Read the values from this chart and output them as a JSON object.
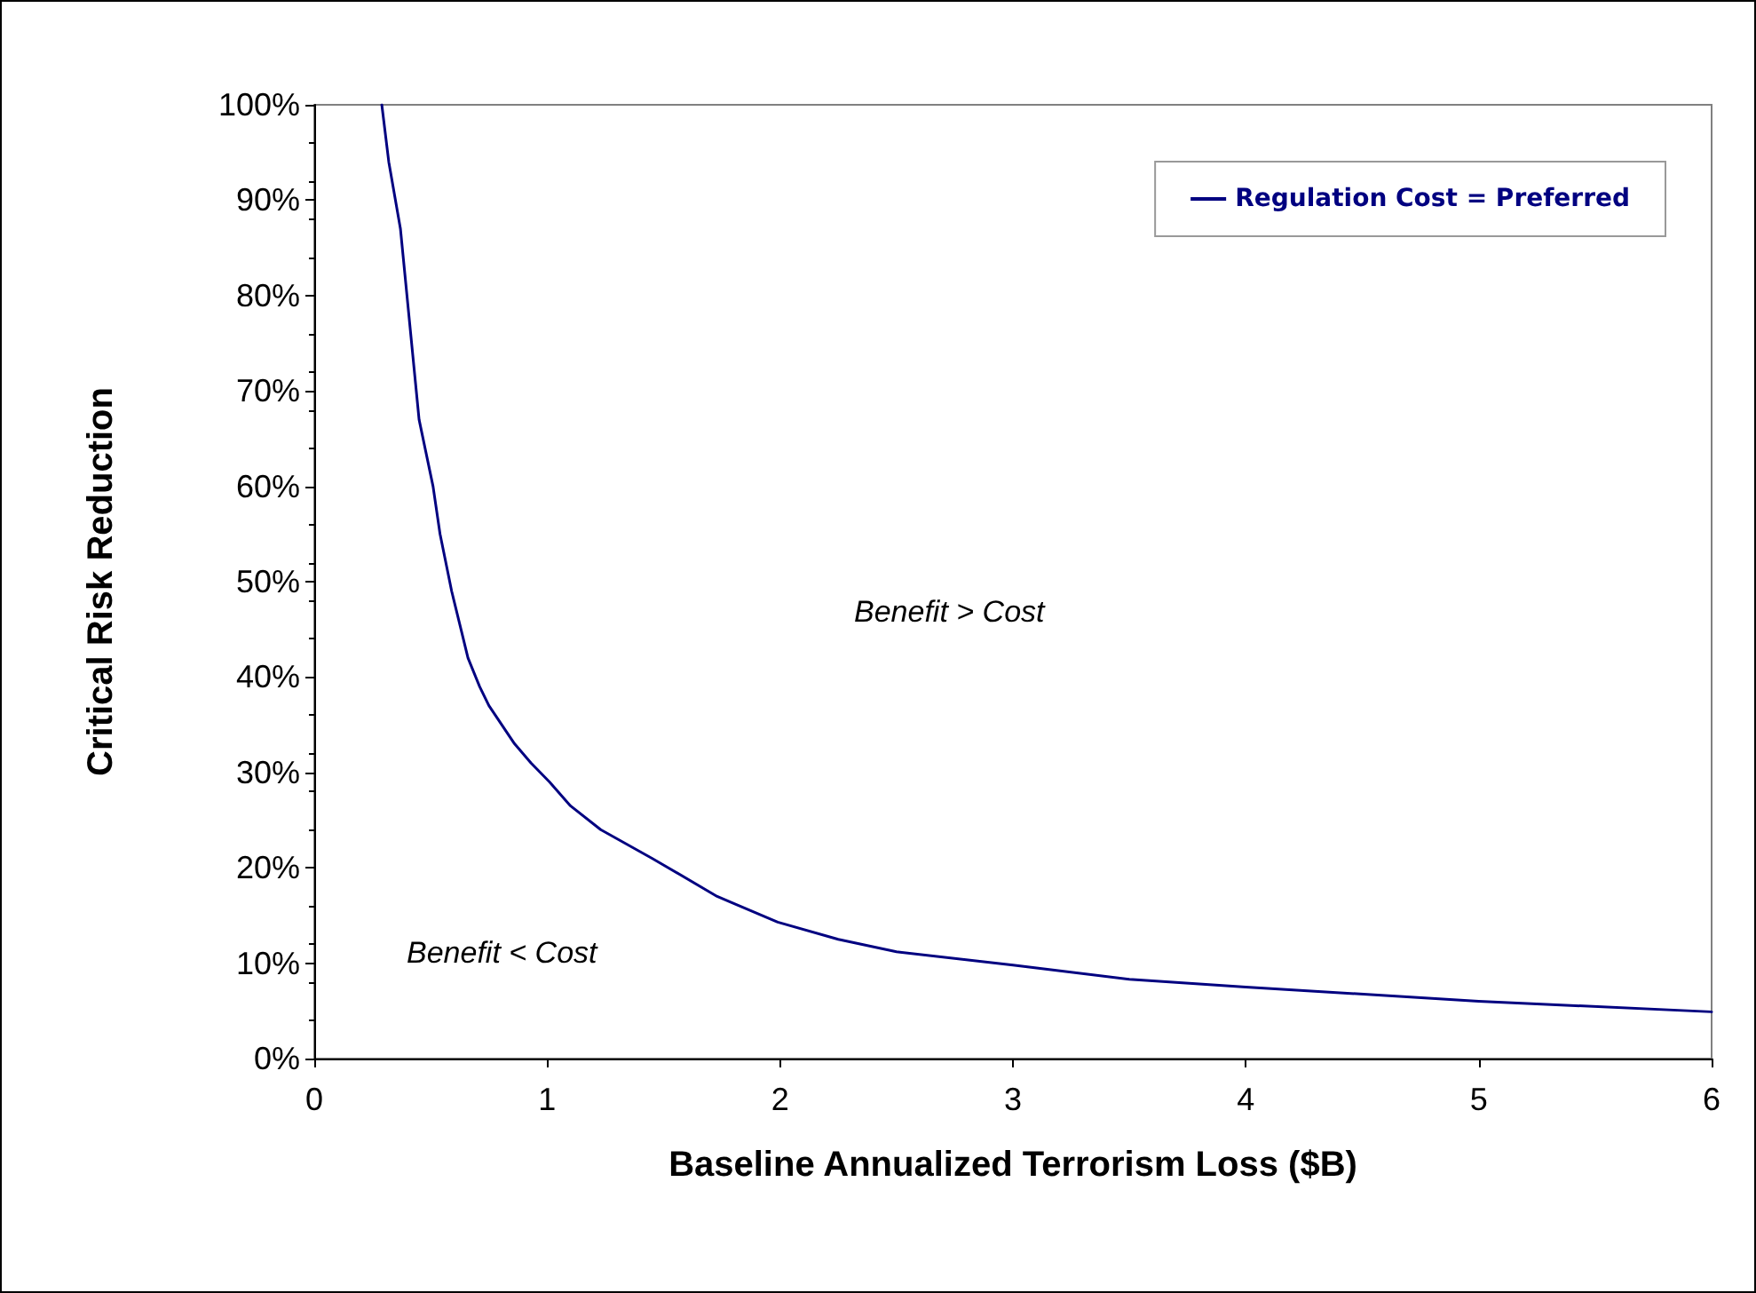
{
  "chart_data": {
    "type": "line",
    "xlabel": "Baseline Annualized Terrorism Loss ($B)",
    "ylabel": "Critical Risk Reduction",
    "series": [
      {
        "name": "Regulation Cost = Preferred",
        "color": "#000080",
        "x": [
          0.29,
          0.32,
          0.37,
          0.45,
          0.51,
          0.54,
          0.59,
          0.63,
          0.66,
          0.71,
          0.75,
          0.86,
          0.93,
          1.01,
          1.1,
          1.23,
          1.45,
          1.73,
          1.99,
          2.25,
          2.5,
          3,
          3.5,
          4,
          5,
          6
        ],
        "values": [
          100,
          94,
          87,
          67,
          60,
          55,
          49,
          45,
          42,
          39,
          37,
          33,
          31,
          29,
          26.5,
          24,
          21,
          17,
          14.3,
          12.5,
          11.2,
          9.8,
          8.3,
          7.5,
          6,
          4.9
        ]
      }
    ],
    "xlim": [
      0,
      6
    ],
    "xticks": [
      0,
      1,
      2,
      3,
      4,
      5,
      6
    ],
    "ylim": [
      0,
      100
    ],
    "yticks": [
      {
        "value": 0,
        "label": "0%"
      },
      {
        "value": 10,
        "label": "10%"
      },
      {
        "value": 20,
        "label": "20%"
      },
      {
        "value": 30,
        "label": "30%"
      },
      {
        "value": 40,
        "label": "40%"
      },
      {
        "value": 50,
        "label": "50%"
      },
      {
        "value": 60,
        "label": "60%"
      },
      {
        "value": 70,
        "label": "70%"
      },
      {
        "value": 80,
        "label": "80%"
      },
      {
        "value": 90,
        "label": "90%"
      },
      {
        "value": 100,
        "label": "100%"
      }
    ],
    "annotations": [
      "Benefit > Cost",
      "Benefit < Cost"
    ],
    "legend": "top right",
    "grid": false,
    "marker": "none",
    "line_style": "solid"
  }
}
